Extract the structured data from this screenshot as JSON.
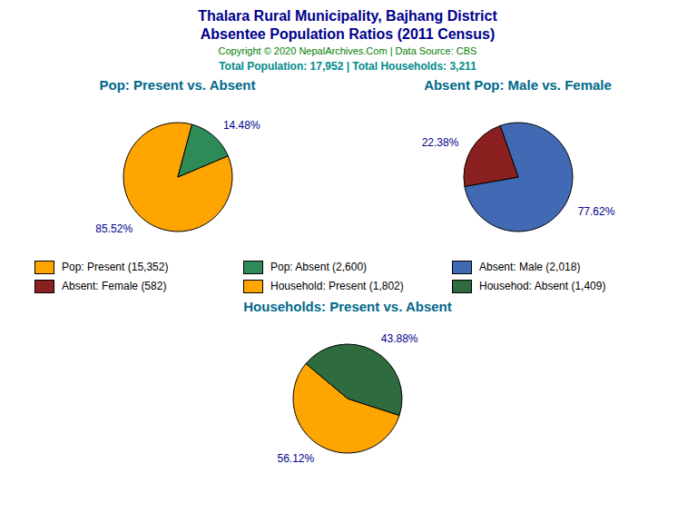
{
  "title": "Thalara Rural Municipality, Bajhang District",
  "subtitle": "Absentee Population Ratios (2011 Census)",
  "annotations": [
    "Copyright © 2020 NepalArchives.Com | Data Source: CBS",
    "Total Population: 17,952 | Total Households: 3,211"
  ],
  "legend": "center",
  "chart_data": [
    {
      "type": "pie",
      "title": "Pop: Present vs. Absent",
      "categories": [
        "Pop: Present (15,352)",
        "Pop: Absent (2,600)"
      ],
      "values": [
        85.52,
        14.48
      ],
      "value_labels": [
        "85.52%",
        "14.48%"
      ],
      "colors": [
        "#FFA500",
        "#2E8B57"
      ],
      "data_labels": true
    },
    {
      "type": "pie",
      "title": "Absent Pop: Male vs. Female",
      "categories": [
        "Absent: Male (2,018)",
        "Absent: Female (582)"
      ],
      "values": [
        77.62,
        22.38
      ],
      "value_labels": [
        "77.62%",
        "22.38%"
      ],
      "colors": [
        "#4169B4",
        "#8B2020"
      ],
      "data_labels": true
    },
    {
      "type": "pie",
      "title": "Households: Present vs. Absent",
      "categories": [
        "Household: Present (1,802)",
        "Househod: Absent (1,409)"
      ],
      "values": [
        56.12,
        43.88
      ],
      "value_labels": [
        "56.12%",
        "43.88%"
      ],
      "colors": [
        "#FFA500",
        "#2E6B3E"
      ],
      "data_labels": true
    }
  ]
}
